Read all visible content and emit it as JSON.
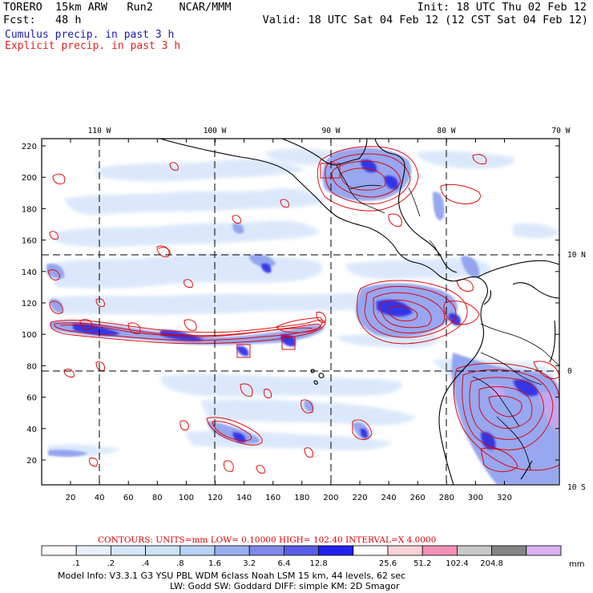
{
  "header": {
    "model": "TORERO  15km ARW   Run2    NCAR/MMM",
    "init": "Init: 18 UTC Thu 02 Feb 12",
    "fcst": "Fcst:   48 h",
    "valid": "Valid: 18 UTC Sat 04 Feb 12 (12 CST Sat 04 Feb 12)",
    "cumulus": "Cumulus precip. in past 3 h",
    "explicit": "Explicit precip. in past 3 h"
  },
  "colors": {
    "cumulus_text": "#1a1ab0",
    "explicit_text": "#e02020",
    "contour": "#e00000",
    "coast": "#000000"
  },
  "map": {
    "top_lon_labels": [
      "110 W",
      "100 W",
      "90 W",
      "80 W",
      "70 W"
    ],
    "right_lat_labels": [
      "10 N",
      "0",
      "10 S"
    ],
    "y_ticks": [
      "220",
      "200",
      "180",
      "160",
      "140",
      "120",
      "100",
      "80",
      "60",
      "40",
      "20"
    ],
    "x_ticks": [
      "20",
      "40",
      "60",
      "80",
      "100",
      "120",
      "140",
      "160",
      "180",
      "200",
      "220",
      "240",
      "260",
      "280",
      "300",
      "320"
    ]
  },
  "legend": {
    "contours_label": "CONTOURS:  UNITS=mm  LOW= 0.10000      HIGH=  102.40      INTERVAL=X  4.0000",
    "bins": [
      {
        "color": "#ffffff"
      },
      {
        "color": "#e8f1ff"
      },
      {
        "color": "#d6e7fb"
      },
      {
        "color": "#cce3f3"
      },
      {
        "color": "#b8d3f5"
      },
      {
        "color": "#98b0ef"
      },
      {
        "color": "#7f88e8"
      },
      {
        "color": "#5a5ee8"
      },
      {
        "color": "#2222f0"
      },
      {
        "color": "#ffffff"
      },
      {
        "color": "#f9d2d6"
      },
      {
        "color": "#f190b8"
      },
      {
        "color": "#c8c8c8"
      },
      {
        "color": "#858585"
      },
      {
        "color": "#dab0f0"
      }
    ],
    "bin_labels": [
      ".1",
      ".2",
      ".4",
      ".8",
      "1.6",
      "3.2",
      "6.4",
      "12.8",
      "25.6",
      "51.2",
      "102.4",
      "204.8"
    ],
    "unit": "mm"
  },
  "footer": {
    "line1": "Model Info: V3.3.1    G3      YSU PBL   WDM 6class  Noah LSM  15 km,    44 levels,     62 sec",
    "line2": "LW: Godd SW: Goddard DIFF: simple KM: 2D Smagor"
  }
}
